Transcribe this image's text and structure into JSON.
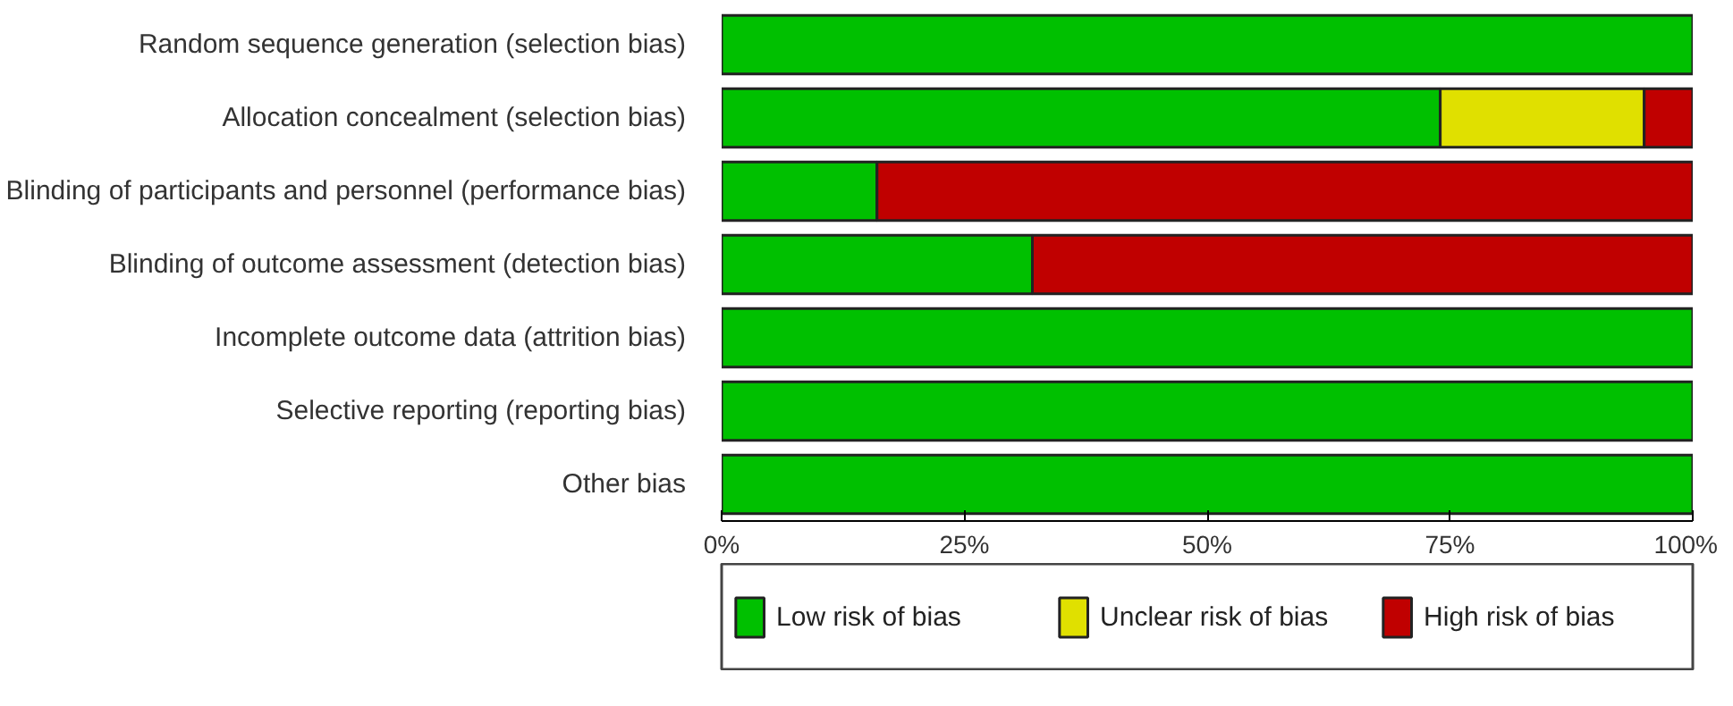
{
  "chart_data": {
    "type": "bar",
    "orientation": "horizontal",
    "stacked": true,
    "categories": [
      "Random sequence generation (selection bias)",
      "Allocation concealment (selection bias)",
      "Blinding of participants and personnel (performance bias)",
      "Blinding of outcome assessment (detection bias)",
      "Incomplete outcome data (attrition bias)",
      "Selective reporting (reporting bias)",
      "Other bias"
    ],
    "series": [
      {
        "name": "Low risk of bias",
        "color": "#00c000",
        "values": [
          100,
          74,
          16,
          32,
          100,
          100,
          100
        ]
      },
      {
        "name": "Unclear risk of bias",
        "color": "#e0e000",
        "values": [
          0,
          21,
          0,
          0,
          0,
          0,
          0
        ]
      },
      {
        "name": "High risk of bias",
        "color": "#c00000",
        "values": [
          0,
          5,
          84,
          68,
          0,
          0,
          0
        ]
      }
    ],
    "xlim": [
      0,
      100
    ],
    "xticks": [
      {
        "value": 0,
        "label": "0%"
      },
      {
        "value": 25,
        "label": "25%"
      },
      {
        "value": 50,
        "label": "50%"
      },
      {
        "value": 75,
        "label": "75%"
      },
      {
        "value": 100,
        "label": "100%"
      }
    ],
    "grid": false,
    "legend": "bottom"
  }
}
